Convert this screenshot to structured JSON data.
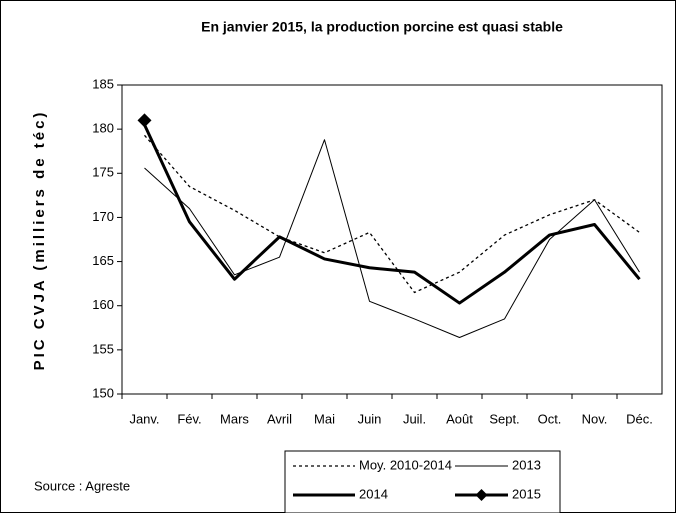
{
  "chart_data": {
    "type": "line",
    "title": "En janvier 2015, la production porcine est quasi stable",
    "y_label": "PIC CVJA (milliers de téc)",
    "source": "Source : Agreste",
    "categories": [
      "Janv.",
      "Fév.",
      "Mars",
      "Avril",
      "Mai",
      "Juin",
      "Juil.",
      "Août",
      "Sept.",
      "Oct.",
      "Nov.",
      "Déc."
    ],
    "series": [
      {
        "name": "Moy. 2010-2014",
        "color": "#000000",
        "dash": true,
        "width": 1.3,
        "marker": false,
        "values": [
          179.3,
          173.5,
          170.8,
          167.8,
          166,
          168.3,
          161.5,
          163.8,
          168,
          170.3,
          172,
          168.3
        ]
      },
      {
        "name": "2013",
        "color": "#000000",
        "dash": false,
        "width": 1,
        "marker": false,
        "values": [
          175.6,
          171,
          163.5,
          165.5,
          178.8,
          160.5,
          158.5,
          156.4,
          158.5,
          167.5,
          172,
          163.8
        ]
      },
      {
        "name": "2014",
        "color": "#000000",
        "dash": false,
        "width": 3,
        "marker": false,
        "values": [
          180.5,
          169.5,
          163,
          167.8,
          165.3,
          164.3,
          163.8,
          160.3,
          163.8,
          168,
          169.2,
          163
        ]
      },
      {
        "name": "2015",
        "color": "#000000",
        "dash": false,
        "width": 3,
        "marker": true,
        "values": [
          181,
          null,
          null,
          null,
          null,
          null,
          null,
          null,
          null,
          null,
          null,
          null
        ]
      }
    ],
    "ylim": [
      150,
      185
    ],
    "yticks": [
      150,
      155,
      160,
      165,
      170,
      175,
      180,
      185
    ],
    "grid": false
  }
}
